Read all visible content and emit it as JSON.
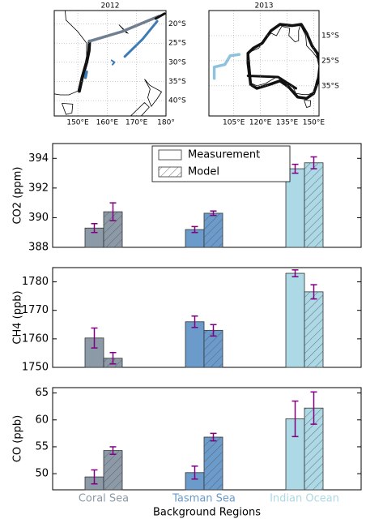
{
  "chart_data": [
    {
      "type": "map",
      "title": "2012",
      "xlim": [
        142,
        180
      ],
      "ylim": [
        -44,
        -16.5
      ],
      "xticks": [
        {
          "value": 150,
          "label": "150°E"
        },
        {
          "value": 160,
          "label": "160°E"
        },
        {
          "value": 170,
          "label": "170°E"
        },
        {
          "value": 180,
          "label": "180°"
        }
      ],
      "yticks": [
        {
          "value": -20,
          "label": "20°S"
        },
        {
          "value": -25,
          "label": "25°S"
        },
        {
          "value": -30,
          "label": "30°S"
        },
        {
          "value": -35,
          "label": "35°S"
        },
        {
          "value": -40,
          "label": "40°S"
        }
      ],
      "grid": true
    },
    {
      "type": "map",
      "title": "2013",
      "xlim": [
        91,
        153
      ],
      "ylim": [
        -47,
        -5
      ],
      "xticks": [
        {
          "value": 105,
          "label": "105°E"
        },
        {
          "value": 120,
          "label": "120°E"
        },
        {
          "value": 135,
          "label": "135°E"
        },
        {
          "value": 150,
          "label": "150°E"
        }
      ],
      "yticks": [
        {
          "value": -15,
          "label": "15°S"
        },
        {
          "value": -25,
          "label": "25°S"
        },
        {
          "value": -35,
          "label": "35°S"
        }
      ],
      "grid": true
    },
    {
      "type": "bar",
      "ylabel": "CO2 (ppm)",
      "ylim": [
        388,
        395
      ],
      "yticks": [
        388,
        390,
        392,
        394
      ],
      "colors": [
        "#8c9aa8",
        "#6b9bcb",
        "#add8e6"
      ],
      "legend": "upper center",
      "series": [
        {
          "name": "Measurement",
          "hatch": false,
          "values": [
            389.3,
            389.2,
            393.3
          ],
          "errors": [
            0.3,
            0.2,
            0.3
          ]
        },
        {
          "name": "Model",
          "hatch": true,
          "values": [
            390.4,
            390.3,
            393.7
          ],
          "errors": [
            0.6,
            0.15,
            0.4
          ]
        }
      ]
    },
    {
      "type": "bar",
      "ylabel": "CH4 (ppb)",
      "ylim": [
        1750,
        1785
      ],
      "yticks": [
        1750,
        1760,
        1770,
        1780
      ],
      "colors": [
        "#8c9aa8",
        "#6b9bcb",
        "#add8e6"
      ],
      "series": [
        {
          "hatch": false,
          "values": [
            1760.3,
            1766,
            1783
          ],
          "errors": [
            3.5,
            2,
            1.2
          ]
        },
        {
          "hatch": true,
          "values": [
            1753.2,
            1763,
            1776.5
          ],
          "errors": [
            2,
            2,
            2.5
          ]
        }
      ]
    },
    {
      "type": "bar",
      "ylabel": "CO (ppb)",
      "xlabel": "Background Regions",
      "ylim": [
        47,
        66
      ],
      "yticks": [
        50,
        55,
        60,
        65
      ],
      "categories": [
        "Coral Sea",
        "Tasman Sea",
        "Indian Ocean"
      ],
      "colors": [
        "#8c9aa8",
        "#6b9bcb",
        "#add8e6"
      ],
      "series": [
        {
          "hatch": false,
          "values": [
            49.4,
            50.2,
            60.2
          ],
          "errors": [
            1.3,
            1.2,
            3.3
          ]
        },
        {
          "hatch": true,
          "values": [
            54.3,
            56.8,
            62.2
          ],
          "errors": [
            0.7,
            0.7,
            3
          ]
        }
      ]
    }
  ]
}
